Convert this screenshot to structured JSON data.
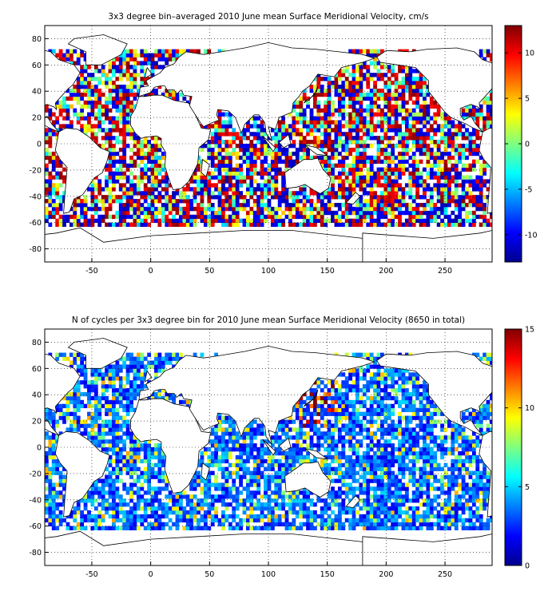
{
  "chart_data": [
    {
      "type": "heatmap",
      "title": "3x3 degree bin–averaged 2010 June mean Surface Meridional Velocity, cm/s",
      "xlabel": "",
      "ylabel": "",
      "xlim": [
        -90,
        290
      ],
      "ylim": [
        -90,
        90
      ],
      "x_ticks": [
        -50,
        0,
        50,
        100,
        150,
        200,
        250
      ],
      "y_ticks": [
        80,
        60,
        40,
        20,
        0,
        -20,
        -40,
        -60,
        -80
      ],
      "grid": true,
      "bin_size_deg": 3,
      "colorbar": {
        "colormap": "jet",
        "range": [
          -13,
          13
        ],
        "ticks": [
          10,
          5,
          0,
          -5,
          -10
        ]
      },
      "coverage": "ocean bins between ~60S and ~70N; noisy mix of strong positive (red) and negative (blue) values"
    },
    {
      "type": "heatmap",
      "title": "N of cycles per 3x3 degree bin for 2010 June mean Surface Meridional Velocity (8650 in total)",
      "xlabel": "",
      "ylabel": "",
      "xlim": [
        -90,
        290
      ],
      "ylim": [
        -90,
        90
      ],
      "x_ticks": [
        -50,
        0,
        50,
        100,
        150,
        200,
        250
      ],
      "y_ticks": [
        80,
        60,
        40,
        20,
        0,
        -20,
        -40,
        -60,
        -80
      ],
      "grid": true,
      "bin_size_deg": 3,
      "total_cycles": 8650,
      "colorbar": {
        "colormap": "jet",
        "range": [
          0,
          15
        ],
        "ticks": [
          15,
          10,
          5,
          0
        ]
      },
      "coverage": "ocean bins between ~60S and ~70N; mostly 1-4 cycles (blue) with occasional higher counts (yellow/red) near Japan and western Pacific"
    }
  ]
}
